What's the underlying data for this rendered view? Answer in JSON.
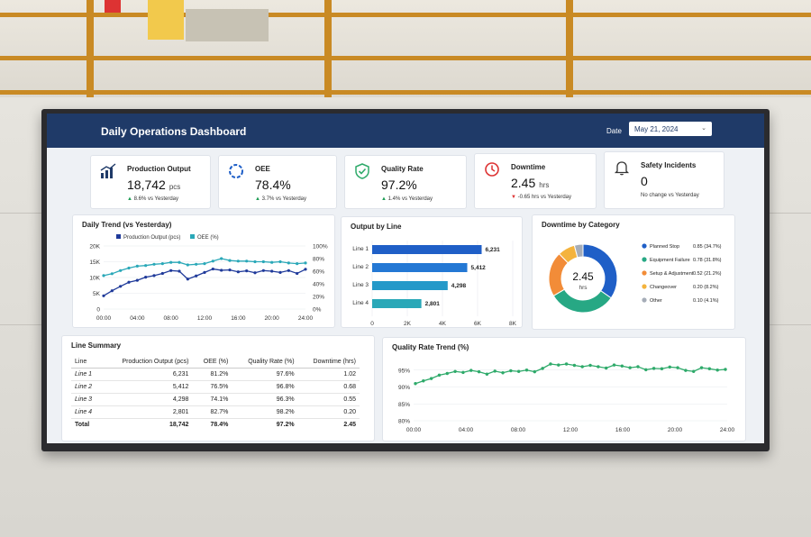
{
  "dashboard": {
    "title": "Daily Operations Dashboard",
    "date_label": "Date",
    "date_value": "May 21, 2024"
  },
  "kpis": [
    {
      "label": "Production Output",
      "value": "18,742",
      "unit": "pcs",
      "delta": "8.6% vs Yesterday",
      "trend": "up",
      "icon": "bar-chart-icon"
    },
    {
      "label": "OEE",
      "value": "78.4%",
      "unit": "",
      "delta": "3.7% vs Yesterday",
      "trend": "up",
      "icon": "gauge-icon"
    },
    {
      "label": "Quality Rate",
      "value": "97.2%",
      "unit": "",
      "delta": "1.4% vs Yesterday",
      "trend": "up",
      "icon": "shield-check-icon"
    },
    {
      "label": "Downtime",
      "value": "2.45",
      "unit": "hrs",
      "delta": "-0.65 hrs vs Yesterday",
      "trend": "down",
      "icon": "clock-icon"
    },
    {
      "label": "Safety Incidents",
      "value": "0",
      "unit": "",
      "delta": "No change vs Yesterday",
      "trend": "none",
      "icon": "bell-icon"
    }
  ],
  "colors": {
    "navy": "#1f3a68",
    "blue": "#2f5bb7",
    "teal": "#2aa8b8",
    "green": "#2eaa6a",
    "orange": "#f28c38",
    "gold": "#f4b33d",
    "gray": "#a6adb8"
  },
  "chart_data": [
    {
      "type": "line",
      "title": "Daily Trend (vs Yesterday)",
      "x": [
        "00:00",
        "01:00",
        "02:00",
        "03:00",
        "04:00",
        "05:00",
        "06:00",
        "07:00",
        "08:00",
        "09:00",
        "10:00",
        "11:00",
        "12:00",
        "13:00",
        "14:00",
        "15:00",
        "16:00",
        "17:00",
        "18:00",
        "19:00",
        "20:00",
        "21:00",
        "22:00",
        "23:00",
        "24:00"
      ],
      "x_ticks": [
        "00:00",
        "04:00",
        "08:00",
        "12:00",
        "16:00",
        "20:00",
        "24:00"
      ],
      "series": [
        {
          "name": "Production Output (pcs)",
          "axis": "left",
          "values": [
            4200,
            5800,
            7200,
            8500,
            9100,
            10100,
            10600,
            11300,
            12200,
            12000,
            9500,
            10500,
            11600,
            12700,
            12300,
            12400,
            11800,
            12100,
            11500,
            12200,
            12000,
            11600,
            12200,
            11300,
            12600
          ]
        },
        {
          "name": "OEE (%)",
          "axis": "right",
          "values": [
            53,
            56,
            61,
            65,
            68,
            69,
            71,
            72,
            74,
            74,
            70,
            71,
            72,
            76,
            80,
            77,
            76,
            76,
            75,
            75,
            74,
            75,
            73,
            72,
            73
          ]
        }
      ],
      "ylim_left": [
        0,
        20000
      ],
      "y_ticks_left": [
        "0",
        "5K",
        "10K",
        "15K",
        "20K"
      ],
      "ylim_right": [
        0,
        100
      ],
      "y_ticks_right": [
        "0%",
        "20%",
        "40%",
        "60%",
        "80%",
        "100%"
      ],
      "legend": "top"
    },
    {
      "type": "bar",
      "title": "Output by Line",
      "orientation": "horizontal",
      "categories": [
        "Line 1",
        "Line 2",
        "Line 3",
        "Line 4"
      ],
      "values": [
        6231,
        5412,
        4298,
        2801
      ],
      "value_labels": [
        "6,231",
        "5,412",
        "4,298",
        "2,801"
      ],
      "xlim": [
        0,
        8000
      ],
      "x_ticks": [
        "0",
        "2K",
        "4K",
        "6K",
        "8K"
      ]
    },
    {
      "type": "pie",
      "title": "Downtime by Category",
      "donut_value": "2.45",
      "donut_unit": "hrs",
      "slices": [
        {
          "name": "Planned Stop",
          "value": 0.85,
          "label": "0.85 (34.7%)",
          "color": "#1f5fc7"
        },
        {
          "name": "Equipment Failure",
          "value": 0.78,
          "label": "0.78 (31.8%)",
          "color": "#27a884"
        },
        {
          "name": "Setup & Adjustment",
          "value": 0.52,
          "label": "0.52 (21.2%)",
          "color": "#f28c38"
        },
        {
          "name": "Changeover",
          "value": 0.2,
          "label": "0.20 (8.2%)",
          "color": "#f4b33d"
        },
        {
          "name": "Other",
          "value": 0.1,
          "label": "0.10 (4.1%)",
          "color": "#a6adb8"
        }
      ],
      "legend": "right"
    },
    {
      "type": "table",
      "title": "Line Summary",
      "columns": [
        "Line",
        "Production Output (pcs)",
        "OEE (%)",
        "Quality Rate (%)",
        "Downtime (hrs)"
      ],
      "rows": [
        [
          "Line 1",
          "6,231",
          "81.2%",
          "97.6%",
          "1.02"
        ],
        [
          "Line 2",
          "5,412",
          "76.5%",
          "96.8%",
          "0.68"
        ],
        [
          "Line 3",
          "4,298",
          "74.1%",
          "96.3%",
          "0.55"
        ],
        [
          "Line 4",
          "2,801",
          "82.7%",
          "98.2%",
          "0.20"
        ]
      ],
      "total": [
        "Total",
        "18,742",
        "78.4%",
        "97.2%",
        "2.45"
      ]
    },
    {
      "type": "line",
      "title": "Quality Rate Trend (%)",
      "x_ticks": [
        "00:00",
        "04:00",
        "08:00",
        "12:00",
        "16:00",
        "20:00",
        "24:00"
      ],
      "series": [
        {
          "values": [
            91.0,
            91.8,
            92.5,
            93.5,
            94.0,
            94.6,
            94.3,
            94.9,
            94.5,
            93.8,
            94.7,
            94.2,
            94.8,
            94.6,
            95.0,
            94.5,
            95.5,
            96.8,
            96.5,
            96.8,
            96.4,
            96.0,
            96.4,
            96.0,
            95.6,
            96.5,
            96.2,
            95.7,
            96.0,
            95.1,
            95.5,
            95.4,
            95.9,
            95.7,
            94.9,
            94.6,
            95.7,
            95.4,
            95.0,
            95.2
          ]
        }
      ],
      "ylim": [
        80,
        96
      ],
      "y_ticks": [
        "80%",
        "85%",
        "90%",
        "95%"
      ]
    }
  ]
}
